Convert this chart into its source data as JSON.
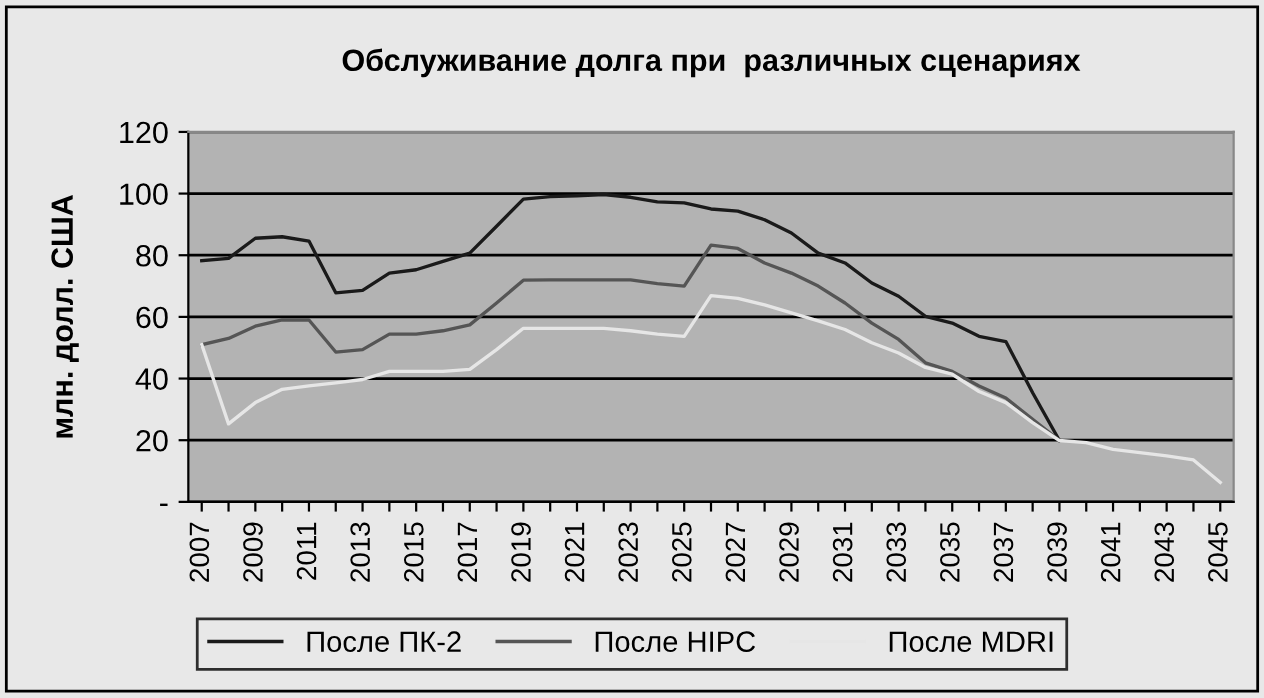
{
  "chart_data": {
    "type": "line",
    "title": "Обслуживание долга при  различных сценариях",
    "ylabel": "млн. долл. США",
    "categories": [
      "2007",
      null,
      "2009",
      null,
      "2011",
      null,
      "2013",
      null,
      "2015",
      null,
      "2017",
      null,
      "2019",
      null,
      "2021",
      null,
      "2023",
      null,
      "2025",
      null,
      "2027",
      null,
      "2029",
      null,
      "2031",
      null,
      "2033",
      null,
      "2035",
      null,
      "2037",
      null,
      "2039",
      null,
      "2041",
      null,
      "2043",
      null,
      "2045"
    ],
    "series": [
      {
        "name": "После ПК-2",
        "color": "#1a1a1a",
        "values": [
          78.2,
          79,
          85.5,
          86,
          84.6,
          67.8,
          68.6,
          74.2,
          75.3,
          78,
          80.7,
          89.4,
          98.2,
          99,
          99.3,
          99.7,
          98.8,
          97.3,
          97,
          95,
          94.3,
          91.5,
          87.2,
          80.7,
          77.5,
          71,
          66.7,
          60.2,
          58,
          53.7,
          52,
          35.4,
          19.9,
          null,
          null,
          null,
          null,
          null,
          null
        ]
      },
      {
        "name": "После HIPC",
        "color": "#555555",
        "values": [
          51,
          53,
          57,
          59,
          59,
          48.6,
          49.4,
          54.4,
          54.4,
          55.5,
          57.4,
          64.5,
          71.9,
          72,
          72,
          72,
          72,
          70.8,
          70,
          83.3,
          82.2,
          77.5,
          74.2,
          70,
          64.5,
          58,
          52.7,
          45.1,
          42.3,
          37.6,
          33.7,
          26.8,
          19.9,
          null,
          null,
          null,
          null,
          null,
          null
        ]
      },
      {
        "name": "После MDRI",
        "color": "#e6e6e6",
        "values": [
          51,
          25.3,
          32.2,
          36.5,
          37.6,
          38.6,
          39.7,
          42.3,
          42.3,
          42.3,
          43,
          49.4,
          56.3,
          56.3,
          56.3,
          56.3,
          55.5,
          54.4,
          53.7,
          66.9,
          66,
          63.9,
          61.3,
          58.7,
          55.9,
          51.6,
          48.3,
          43.6,
          41.4,
          35.8,
          32.2,
          25.7,
          19.9,
          19.2,
          17,
          16,
          14.9,
          13.6,
          6.3
        ]
      }
    ],
    "ylim": [
      0,
      120
    ],
    "yticks": [
      {
        "value": 0,
        "label": "-"
      },
      20,
      40,
      60,
      80,
      100,
      120
    ],
    "grid": "y",
    "legend": "bottom",
    "marker": "none",
    "line_style": "solid"
  }
}
